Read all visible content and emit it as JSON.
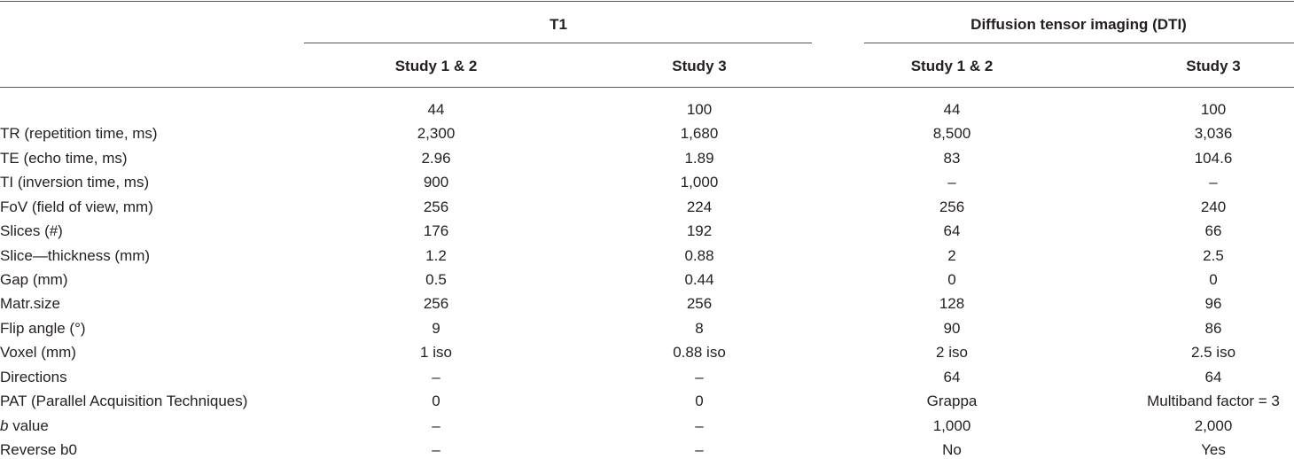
{
  "table": {
    "groups": [
      {
        "title": "T1",
        "columns": [
          "Study 1 & 2",
          "Study 3"
        ]
      },
      {
        "title": "Diffusion tensor imaging (DTI)",
        "columns": [
          "Study 1 & 2",
          "Study 3"
        ]
      }
    ],
    "rows": [
      {
        "values": [
          "44",
          "100",
          "44",
          "100"
        ]
      },
      {
        "label": "TR (repetition time, ms)",
        "values": [
          "2,300",
          "1,680",
          "8,500",
          "3,036"
        ]
      },
      {
        "label": "TE (echo time, ms)",
        "values": [
          "2.96",
          "1.89",
          "83",
          "104.6"
        ]
      },
      {
        "label": "TI (inversion time, ms)",
        "values": [
          "900",
          "1,000",
          "–",
          "–"
        ]
      },
      {
        "label": "FoV (field of view, mm)",
        "values": [
          "256",
          "224",
          "256",
          "240"
        ]
      },
      {
        "label": "Slices (#)",
        "values": [
          "176",
          "192",
          "64",
          "66"
        ]
      },
      {
        "label": "Slice—thickness (mm)",
        "values": [
          "1.2",
          "0.88",
          "2",
          "2.5"
        ]
      },
      {
        "label": "Gap (mm)",
        "values": [
          "0.5",
          "0.44",
          "0",
          "0"
        ]
      },
      {
        "label": "Matr.size",
        "values": [
          "256",
          "256",
          "128",
          "96"
        ]
      },
      {
        "label": "Flip angle (°)",
        "values": [
          "9",
          "8",
          "90",
          "86"
        ]
      },
      {
        "label": "Voxel (mm)",
        "values": [
          "1 iso",
          "0.88 iso",
          "2 iso",
          "2.5 iso"
        ]
      },
      {
        "label": "Directions",
        "values": [
          "–",
          "–",
          "64",
          "64"
        ]
      },
      {
        "label": "PAT (Parallel Acquisition Techniques)",
        "values": [
          "0",
          "0",
          "Grappa",
          "Multiband factor = 3"
        ]
      },
      {
        "label_em": "b",
        "label": "value",
        "values": [
          "–",
          "–",
          "1,000",
          "2,000"
        ]
      },
      {
        "label": "Reverse b0",
        "values": [
          "–",
          "–",
          "No",
          "Yes"
        ]
      }
    ]
  }
}
